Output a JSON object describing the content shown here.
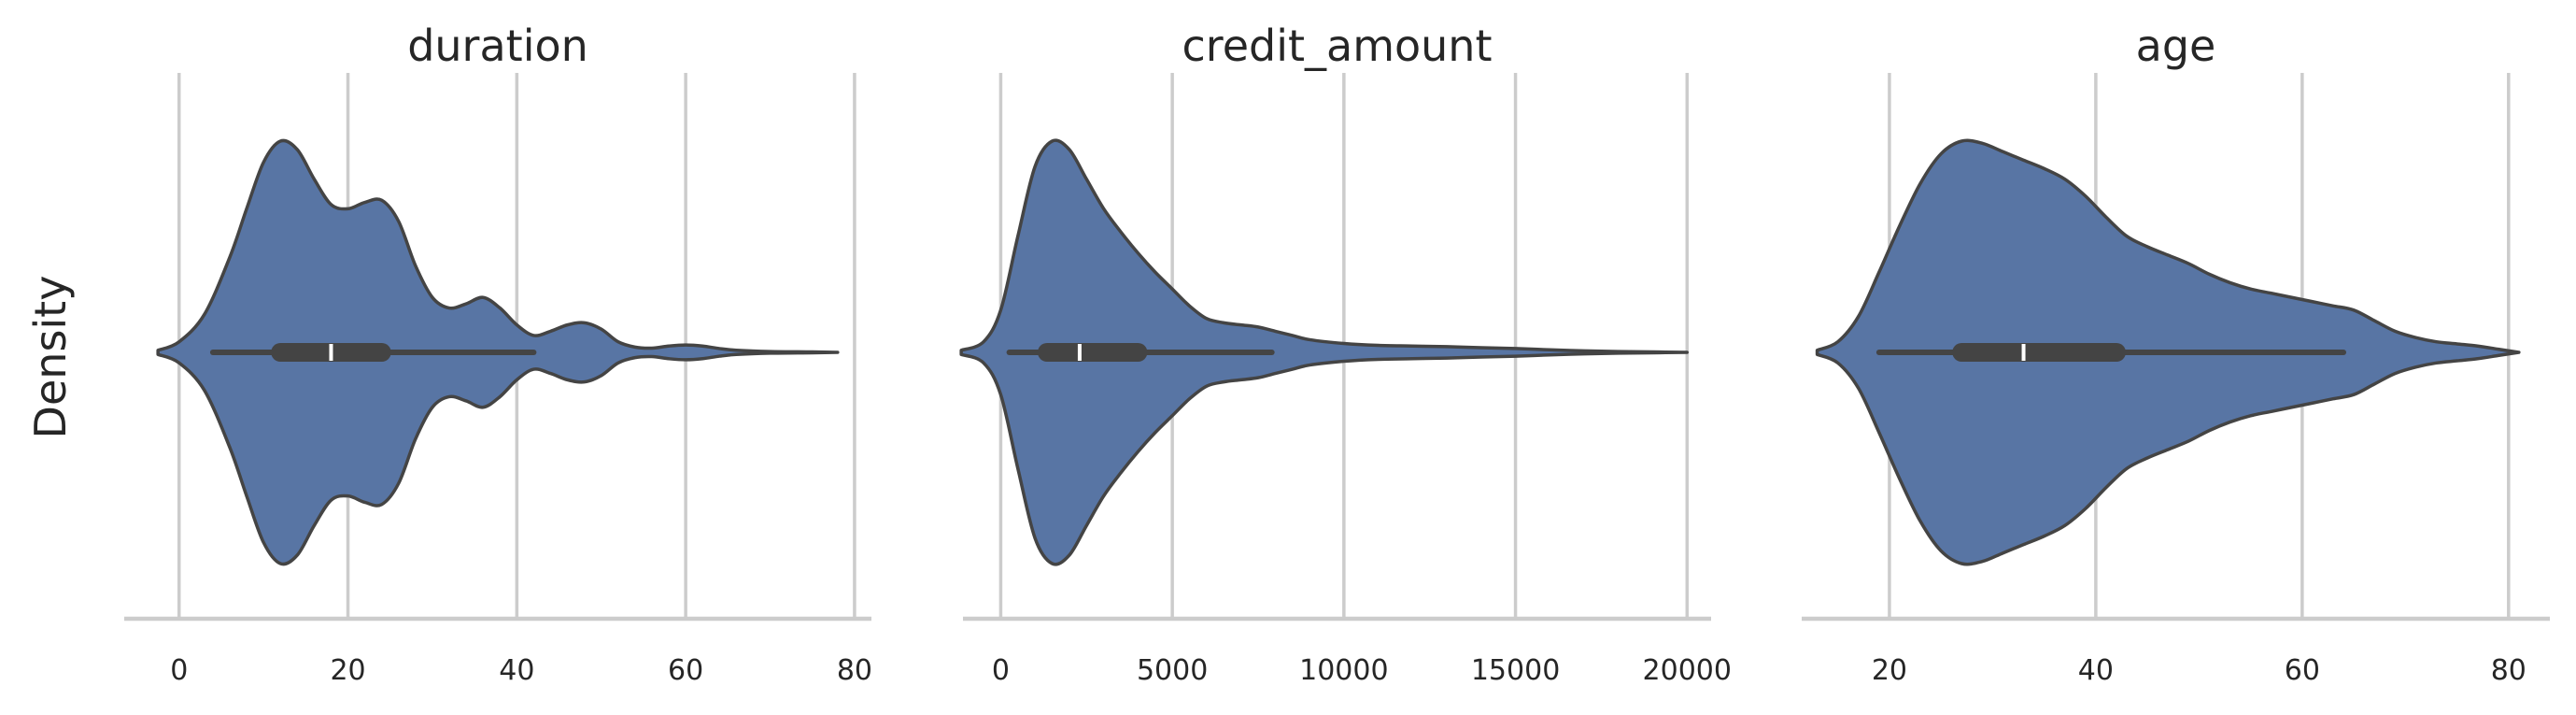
{
  "chart_data": {
    "type": "violin",
    "ylabel": "Density",
    "colors": {
      "violin_fill": "#5875a4",
      "outline": "#444444",
      "grid": "#cccccc",
      "median": "#ffffff"
    },
    "grid": true,
    "panels": [
      {
        "title": "duration",
        "xlim": [
          -6.5,
          82
        ],
        "ticks": [
          0,
          20,
          40,
          60,
          80
        ],
        "tick_labels": [
          "0",
          "20",
          "40",
          "60",
          "80"
        ],
        "summary": {
          "whisker_low": 4,
          "q1": 12,
          "median": 18,
          "q3": 24,
          "whisker_high": 42
        },
        "density": [
          [
            -2.5,
            0.01
          ],
          [
            0,
            0.05
          ],
          [
            3,
            0.18
          ],
          [
            6,
            0.45
          ],
          [
            8,
            0.68
          ],
          [
            10,
            0.9
          ],
          [
            12,
            1.0
          ],
          [
            14,
            0.96
          ],
          [
            16,
            0.82
          ],
          [
            18,
            0.7
          ],
          [
            20,
            0.68
          ],
          [
            22,
            0.71
          ],
          [
            24,
            0.72
          ],
          [
            26,
            0.62
          ],
          [
            28,
            0.41
          ],
          [
            30,
            0.26
          ],
          [
            32,
            0.21
          ],
          [
            34,
            0.23
          ],
          [
            36,
            0.26
          ],
          [
            38,
            0.21
          ],
          [
            40,
            0.13
          ],
          [
            42,
            0.08
          ],
          [
            44,
            0.1
          ],
          [
            46,
            0.13
          ],
          [
            48,
            0.14
          ],
          [
            50,
            0.11
          ],
          [
            52,
            0.05
          ],
          [
            54,
            0.025
          ],
          [
            56,
            0.02
          ],
          [
            58,
            0.03
          ],
          [
            60,
            0.035
          ],
          [
            62,
            0.03
          ],
          [
            64,
            0.018
          ],
          [
            66,
            0.01
          ],
          [
            70,
            0.004
          ],
          [
            75,
            0.002
          ],
          [
            78,
            0.0
          ]
        ]
      },
      {
        "title": "credit_amount",
        "xlim": [
          -1100,
          20700
        ],
        "ticks": [
          0,
          5000,
          10000,
          15000,
          20000
        ],
        "tick_labels": [
          "0",
          "5000",
          "10000",
          "15000",
          "20000"
        ],
        "summary": {
          "whisker_low": 250,
          "q1": 1350,
          "median": 2300,
          "q3": 4000,
          "whisker_high": 7900
        },
        "density": [
          [
            -1150,
            0.01
          ],
          [
            -500,
            0.05
          ],
          [
            0,
            0.2
          ],
          [
            500,
            0.55
          ],
          [
            1000,
            0.88
          ],
          [
            1500,
            1.0
          ],
          [
            2000,
            0.96
          ],
          [
            2500,
            0.82
          ],
          [
            3000,
            0.68
          ],
          [
            3500,
            0.57
          ],
          [
            4000,
            0.47
          ],
          [
            4500,
            0.38
          ],
          [
            5000,
            0.3
          ],
          [
            5500,
            0.22
          ],
          [
            6000,
            0.16
          ],
          [
            6500,
            0.14
          ],
          [
            7000,
            0.13
          ],
          [
            7500,
            0.12
          ],
          [
            8000,
            0.1
          ],
          [
            8500,
            0.08
          ],
          [
            9000,
            0.06
          ],
          [
            10000,
            0.042
          ],
          [
            11000,
            0.033
          ],
          [
            12000,
            0.03
          ],
          [
            13000,
            0.027
          ],
          [
            14000,
            0.022
          ],
          [
            15000,
            0.018
          ],
          [
            16000,
            0.012
          ],
          [
            17000,
            0.007
          ],
          [
            18000,
            0.004
          ],
          [
            19000,
            0.002
          ],
          [
            20000,
            0.0
          ]
        ]
      },
      {
        "title": "age",
        "xlim": [
          11.5,
          84
        ],
        "ticks": [
          20,
          40,
          60,
          80
        ],
        "tick_labels": [
          "20",
          "40",
          "60",
          "80"
        ],
        "summary": {
          "whisker_low": 19,
          "q1": 27,
          "median": 33,
          "q3": 42,
          "whisker_high": 64
        },
        "density": [
          [
            13,
            0.01
          ],
          [
            15,
            0.05
          ],
          [
            17,
            0.17
          ],
          [
            19,
            0.38
          ],
          [
            21,
            0.6
          ],
          [
            23,
            0.8
          ],
          [
            25,
            0.94
          ],
          [
            27,
            1.0
          ],
          [
            29,
            0.99
          ],
          [
            31,
            0.95
          ],
          [
            33,
            0.91
          ],
          [
            35,
            0.87
          ],
          [
            37,
            0.82
          ],
          [
            39,
            0.74
          ],
          [
            41,
            0.64
          ],
          [
            43,
            0.55
          ],
          [
            45,
            0.5
          ],
          [
            47,
            0.46
          ],
          [
            49,
            0.42
          ],
          [
            51,
            0.37
          ],
          [
            53,
            0.33
          ],
          [
            55,
            0.3
          ],
          [
            57,
            0.28
          ],
          [
            59,
            0.26
          ],
          [
            61,
            0.24
          ],
          [
            63,
            0.22
          ],
          [
            65,
            0.2
          ],
          [
            67,
            0.15
          ],
          [
            69,
            0.1
          ],
          [
            71,
            0.07
          ],
          [
            73,
            0.05
          ],
          [
            75,
            0.04
          ],
          [
            77,
            0.03
          ],
          [
            79,
            0.015
          ],
          [
            81,
            0.0
          ]
        ]
      }
    ]
  }
}
